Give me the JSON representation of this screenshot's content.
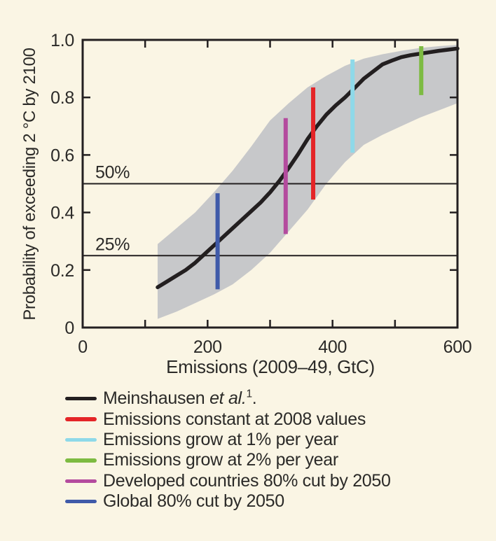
{
  "figure": {
    "background": "#faf5e4",
    "text_color": "#2b2a28"
  },
  "chart_data": {
    "type": "line",
    "title": "",
    "xlabel": "Emissions (2009–49, GtC)",
    "ylabel": "Probability of exceeding 2 °C by 2100",
    "xlim": [
      0,
      600
    ],
    "ylim": [
      0,
      1.0
    ],
    "axis_color": "#231f20",
    "grid": false,
    "legend_position": "below",
    "x_ticks": [
      {
        "value": 0,
        "label": "0"
      },
      {
        "value": 100,
        "label": ""
      },
      {
        "value": 200,
        "label": "200"
      },
      {
        "value": 300,
        "label": ""
      },
      {
        "value": 400,
        "label": "400"
      },
      {
        "value": 500,
        "label": ""
      },
      {
        "value": 600,
        "label": "600"
      }
    ],
    "y_ticks": [
      {
        "value": 0,
        "label": "0"
      },
      {
        "value": 0.2,
        "label": "0.2"
      },
      {
        "value": 0.4,
        "label": "0.4"
      },
      {
        "value": 0.6,
        "label": "0.6"
      },
      {
        "value": 0.8,
        "label": "0.8"
      },
      {
        "value": 1.0,
        "label": "1.0"
      }
    ],
    "reference_lines": [
      {
        "value": 0.5,
        "label": "50%"
      },
      {
        "value": 0.25,
        "label": "25%"
      }
    ],
    "band": {
      "name": "Meinshausen uncertainty band",
      "color": "#c7c8ca",
      "x": [
        120,
        150,
        180,
        210,
        240,
        270,
        300,
        330,
        360,
        390,
        420,
        450,
        480,
        510,
        540,
        570,
        600
      ],
      "upper": [
        0.29,
        0.345,
        0.4,
        0.47,
        0.545,
        0.63,
        0.72,
        0.78,
        0.835,
        0.875,
        0.91,
        0.935,
        0.95,
        0.962,
        0.972,
        0.978,
        0.983
      ],
      "lower": [
        0.03,
        0.055,
        0.085,
        0.115,
        0.15,
        0.2,
        0.26,
        0.335,
        0.41,
        0.5,
        0.575,
        0.635,
        0.67,
        0.7,
        0.73,
        0.755,
        0.78
      ]
    },
    "curve": {
      "name": "Meinshausen et al. (ref 1)",
      "color": "#231f20",
      "x": [
        120,
        135,
        150,
        165,
        180,
        195,
        210,
        225,
        240,
        255,
        270,
        285,
        300,
        315,
        330,
        345,
        360,
        375,
        390,
        405,
        420,
        435,
        450,
        465,
        480,
        495,
        510,
        525,
        540,
        555,
        570,
        585,
        600
      ],
      "y": [
        0.14,
        0.16,
        0.18,
        0.2,
        0.225,
        0.255,
        0.285,
        0.315,
        0.345,
        0.375,
        0.405,
        0.435,
        0.47,
        0.51,
        0.555,
        0.603,
        0.655,
        0.7,
        0.74,
        0.772,
        0.8,
        0.832,
        0.865,
        0.89,
        0.915,
        0.928,
        0.94,
        0.947,
        0.952,
        0.957,
        0.962,
        0.966,
        0.97
      ]
    },
    "scenario_bars": [
      {
        "name": "Global 80% cut by 2050",
        "color": "#3f5aa9",
        "x": 216,
        "y_low": 0.133,
        "y_high": 0.467
      },
      {
        "name": "Developed countries 80% cut by 2050",
        "color": "#b44b9e",
        "x": 325,
        "y_low": 0.325,
        "y_high": 0.728
      },
      {
        "name": "Emissions constant at 2008 values",
        "color": "#e42528",
        "x": 369,
        "y_low": 0.445,
        "y_high": 0.835
      },
      {
        "name": "Emissions grow at 1% per year",
        "color": "#8ed9e9",
        "x": 432,
        "y_low": 0.608,
        "y_high": 0.932
      },
      {
        "name": "Emissions grow at 2% per year",
        "color": "#7dbb42",
        "x": 542,
        "y_low": 0.808,
        "y_high": 0.978
      }
    ]
  },
  "legend": {
    "items": [
      {
        "prefix": "Meinshausen ",
        "italic": "et al.",
        "sup": "1",
        "suffix": ".",
        "color": "#231f20"
      },
      {
        "label": "Emissions constant at 2008 values",
        "color": "#e42528"
      },
      {
        "label": "Emissions grow at 1% per year",
        "color": "#8ed9e9"
      },
      {
        "label": "Emissions grow at 2% per year",
        "color": "#7dbb42"
      },
      {
        "label": "Developed countries 80% cut by 2050",
        "color": "#b44b9e"
      },
      {
        "label": "Global 80% cut by 2050",
        "color": "#3f5aa9"
      }
    ]
  }
}
